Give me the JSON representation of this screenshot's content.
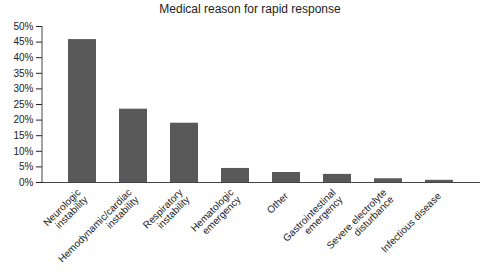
{
  "chart_data": {
    "type": "bar",
    "title": "Medical reason for rapid response",
    "categories": [
      "Neurologic instability",
      "Hemodynamic/cardiac instability",
      "Respiratory instability",
      "Hematologic emergency",
      "Other",
      "Gastrointestinal emergency",
      "Severe electrolyte disturbance",
      "Infectious disease"
    ],
    "values": [
      45.8,
      23.5,
      19.0,
      4.5,
      3.2,
      2.6,
      1.2,
      0.7
    ],
    "color": "#595959",
    "ylim": [
      0,
      50
    ],
    "yticks": [
      {
        "value": 0,
        "label": "0%"
      },
      {
        "value": 5,
        "label": "5%"
      },
      {
        "value": 10,
        "label": "10%"
      },
      {
        "value": 15,
        "label": "15%"
      },
      {
        "value": 20,
        "label": "20%"
      },
      {
        "value": 25,
        "label": "25%"
      },
      {
        "value": 30,
        "label": "30%"
      },
      {
        "value": 35,
        "label": "35%"
      },
      {
        "value": 40,
        "label": "40%"
      },
      {
        "value": 45,
        "label": "45%"
      },
      {
        "value": 50,
        "label": "50%"
      }
    ],
    "grid": false
  }
}
